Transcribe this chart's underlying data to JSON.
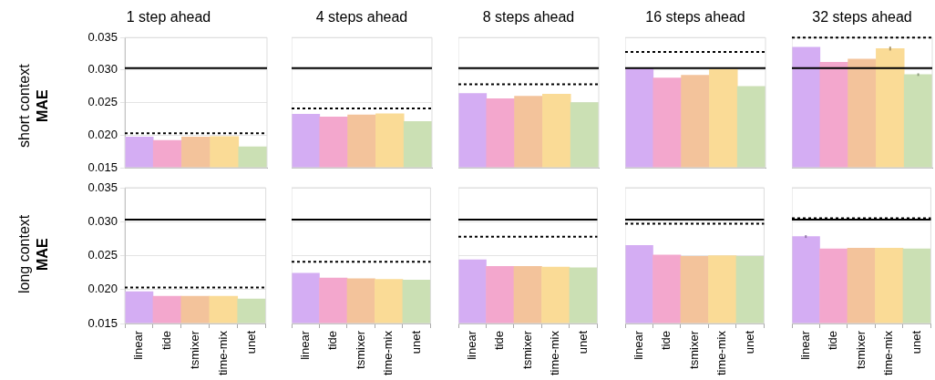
{
  "chart_data": [
    {
      "type": "bar",
      "title": "1 step ahead",
      "ylabel": "MAE",
      "annotations": [
        "short context"
      ],
      "categories": [
        "linear",
        "tide",
        "tsmixer",
        "time-mix",
        "unet"
      ],
      "colors": [
        "#d4adf3",
        "#f3a7cd",
        "#f3c39b",
        "#fadb96",
        "#cbe0b4"
      ],
      "values": [
        0.0197,
        0.0192,
        0.0197,
        0.0198,
        0.0182
      ],
      "ylim": [
        0.015,
        0.035
      ],
      "yticks": [
        {
          "value": 0.015,
          "label": "0.015"
        },
        {
          "value": 0.02,
          "label": "0.020"
        },
        {
          "value": 0.025,
          "label": "0.025"
        },
        {
          "value": 0.03,
          "label": "0.030"
        },
        {
          "value": 0.035,
          "label": "0.035"
        }
      ],
      "grid": "y",
      "tick_labels": "y",
      "ref_lines": [
        {
          "axis": "y",
          "value": 0.0303,
          "color": "#000000",
          "line_style": "solid"
        },
        {
          "axis": "y",
          "value": 0.0203,
          "color": "#000000",
          "line_style": "dotted"
        }
      ]
    },
    {
      "type": "bar",
      "title": "4 steps ahead",
      "categories": [
        "linear",
        "tide",
        "tsmixer",
        "time-mix",
        "unet"
      ],
      "colors": [
        "#d4adf3",
        "#f3a7cd",
        "#f3c39b",
        "#fadb96",
        "#cbe0b4"
      ],
      "values": [
        0.0232,
        0.0228,
        0.0231,
        0.0233,
        0.0221
      ],
      "ylim": [
        0.015,
        0.035
      ],
      "yticks": [
        0.015,
        0.02,
        0.025,
        0.03,
        0.035
      ],
      "grid": "y",
      "tick_labels": false,
      "ref_lines": [
        {
          "axis": "y",
          "value": 0.0303,
          "color": "#000000",
          "line_style": "solid"
        },
        {
          "axis": "y",
          "value": 0.0241,
          "color": "#000000",
          "line_style": "dotted"
        }
      ]
    },
    {
      "type": "bar",
      "title": "8 steps ahead",
      "categories": [
        "linear",
        "tide",
        "tsmixer",
        "time-mix",
        "unet"
      ],
      "colors": [
        "#d4adf3",
        "#f3a7cd",
        "#f3c39b",
        "#fadb96",
        "#cbe0b4"
      ],
      "values": [
        0.0264,
        0.0256,
        0.026,
        0.0263,
        0.025
      ],
      "ylim": [
        0.015,
        0.035
      ],
      "yticks": [
        0.015,
        0.02,
        0.025,
        0.03,
        0.035
      ],
      "grid": "y",
      "tick_labels": false,
      "ref_lines": [
        {
          "axis": "y",
          "value": 0.0303,
          "color": "#000000",
          "line_style": "solid"
        },
        {
          "axis": "y",
          "value": 0.0278,
          "color": "#000000",
          "line_style": "dotted"
        }
      ]
    },
    {
      "type": "bar",
      "title": "16 steps ahead",
      "categories": [
        "linear",
        "tide",
        "tsmixer",
        "time-mix",
        "unet"
      ],
      "colors": [
        "#d4adf3",
        "#f3a7cd",
        "#f3c39b",
        "#fadb96",
        "#cbe0b4"
      ],
      "values": [
        0.0303,
        0.0288,
        0.0292,
        0.0301,
        0.0275
      ],
      "ylim": [
        0.015,
        0.035
      ],
      "yticks": [
        0.015,
        0.02,
        0.025,
        0.03,
        0.035
      ],
      "grid": "y",
      "tick_labels": false,
      "ref_lines": [
        {
          "axis": "y",
          "value": 0.0303,
          "color": "#000000",
          "line_style": "solid"
        },
        {
          "axis": "y",
          "value": 0.0328,
          "color": "#000000",
          "line_style": "dotted"
        }
      ]
    },
    {
      "type": "bar",
      "title": "32 steps ahead",
      "categories": [
        "linear",
        "tide",
        "tsmixer",
        "time-mix",
        "unet"
      ],
      "colors": [
        "#d4adf3",
        "#f3a7cd",
        "#f3c39b",
        "#fadb96",
        "#cbe0b4"
      ],
      "values": [
        0.0335,
        0.0312,
        0.0317,
        0.0333,
        0.0293
      ],
      "errors": [
        null,
        null,
        null,
        0.0003,
        0.0002
      ],
      "ylim": [
        0.015,
        0.035
      ],
      "yticks": [
        0.015,
        0.02,
        0.025,
        0.03,
        0.035
      ],
      "grid": "y",
      "tick_labels": false,
      "ref_lines": [
        {
          "axis": "y",
          "value": 0.0303,
          "color": "#000000",
          "line_style": "solid"
        },
        {
          "axis": "y",
          "value": 0.035,
          "color": "#000000",
          "line_style": "dotted"
        }
      ]
    },
    {
      "type": "bar",
      "ylabel": "MAE",
      "annotations": [
        "long context"
      ],
      "categories": [
        "linear",
        "tide",
        "tsmixer",
        "time-mix",
        "unet"
      ],
      "colors": [
        "#d4adf3",
        "#f3a7cd",
        "#f3c39b",
        "#fadb96",
        "#cbe0b4"
      ],
      "values": [
        0.0197,
        0.019,
        0.019,
        0.019,
        0.0186
      ],
      "ylim": [
        0.015,
        0.035
      ],
      "yticks": [
        {
          "value": 0.015,
          "label": "0.015"
        },
        {
          "value": 0.02,
          "label": "0.020"
        },
        {
          "value": 0.025,
          "label": "0.025"
        },
        {
          "value": 0.03,
          "label": "0.030"
        },
        {
          "value": 0.035,
          "label": "0.035"
        }
      ],
      "grid": "y",
      "ref_lines": [
        {
          "axis": "y",
          "value": 0.0303,
          "color": "#000000",
          "line_style": "solid"
        },
        {
          "axis": "y",
          "value": 0.0203,
          "color": "#000000",
          "line_style": "dotted"
        }
      ]
    },
    {
      "type": "bar",
      "categories": [
        "linear",
        "tide",
        "tsmixer",
        "time-mix",
        "unet"
      ],
      "colors": [
        "#d4adf3",
        "#f3a7cd",
        "#f3c39b",
        "#fadb96",
        "#cbe0b4"
      ],
      "values": [
        0.0224,
        0.0217,
        0.0216,
        0.0215,
        0.0214
      ],
      "ylim": [
        0.015,
        0.035
      ],
      "yticks": [
        0.015,
        0.02,
        0.025,
        0.03,
        0.035
      ],
      "grid": "y",
      "tick_labels": "x",
      "ref_lines": [
        {
          "axis": "y",
          "value": 0.0303,
          "color": "#000000",
          "line_style": "solid"
        },
        {
          "axis": "y",
          "value": 0.0241,
          "color": "#000000",
          "line_style": "dotted"
        }
      ]
    },
    {
      "type": "bar",
      "categories": [
        "linear",
        "tide",
        "tsmixer",
        "time-mix",
        "unet"
      ],
      "colors": [
        "#d4adf3",
        "#f3a7cd",
        "#f3c39b",
        "#fadb96",
        "#cbe0b4"
      ],
      "values": [
        0.0244,
        0.0234,
        0.0234,
        0.0233,
        0.0232
      ],
      "ylim": [
        0.015,
        0.035
      ],
      "yticks": [
        0.015,
        0.02,
        0.025,
        0.03,
        0.035
      ],
      "grid": "y",
      "tick_labels": "x",
      "ref_lines": [
        {
          "axis": "y",
          "value": 0.0303,
          "color": "#000000",
          "line_style": "solid"
        },
        {
          "axis": "y",
          "value": 0.0278,
          "color": "#000000",
          "line_style": "dotted"
        }
      ]
    },
    {
      "type": "bar",
      "categories": [
        "linear",
        "tide",
        "tsmixer",
        "time-mix",
        "unet"
      ],
      "colors": [
        "#d4adf3",
        "#f3a7cd",
        "#f3c39b",
        "#fadb96",
        "#cbe0b4"
      ],
      "values": [
        0.0265,
        0.0251,
        0.0249,
        0.025,
        0.0249
      ],
      "ylim": [
        0.015,
        0.035
      ],
      "yticks": [
        0.015,
        0.02,
        0.025,
        0.03,
        0.035
      ],
      "grid": "y",
      "tick_labels": "x",
      "ref_lines": [
        {
          "axis": "y",
          "value": 0.0303,
          "color": "#000000",
          "line_style": "solid"
        },
        {
          "axis": "y",
          "value": 0.0297,
          "color": "#000000",
          "line_style": "dotted"
        }
      ]
    },
    {
      "type": "bar",
      "categories": [
        "linear",
        "tide",
        "tsmixer",
        "time-mix",
        "unet"
      ],
      "colors": [
        "#d4adf3",
        "#f3a7cd",
        "#f3c39b",
        "#fadb96",
        "#cbe0b4"
      ],
      "values": [
        0.0278,
        0.026,
        0.0261,
        0.0261,
        0.026
      ],
      "errors": [
        0.0002,
        null,
        null,
        null,
        null
      ],
      "ylim": [
        0.015,
        0.035
      ],
      "yticks": [
        0.015,
        0.02,
        0.025,
        0.03,
        0.035
      ],
      "grid": "y",
      "tick_labels": "x",
      "ref_lines": [
        {
          "axis": "y",
          "value": 0.0303,
          "color": "#000000",
          "line_style": "solid"
        },
        {
          "axis": "y",
          "value": 0.0305,
          "color": "#000000",
          "line_style": "dotted"
        }
      ]
    }
  ]
}
